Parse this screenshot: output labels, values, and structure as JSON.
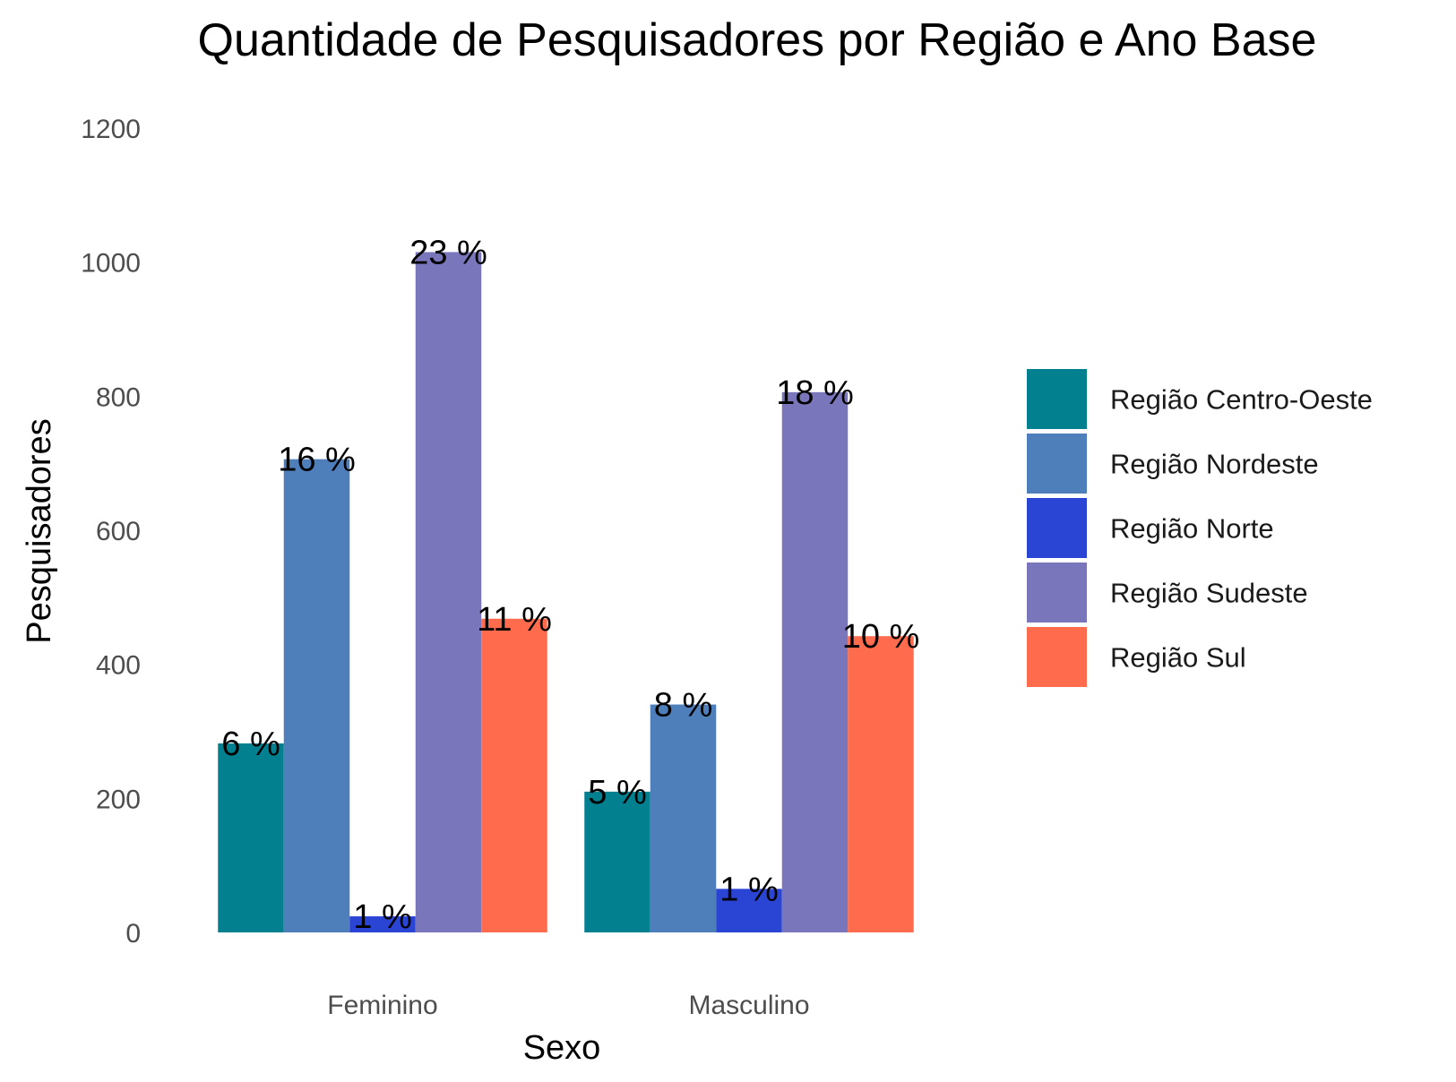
{
  "chart_data": {
    "type": "bar",
    "title": "Quantidade de Pesquisadores por Região e Ano Base",
    "xlabel": "Sexo",
    "ylabel": "Pesquisadores",
    "categories": [
      "Feminino",
      "Masculino"
    ],
    "ylim": [
      0,
      1200
    ],
    "yticks": [
      "0",
      "200",
      "400",
      "600",
      "800",
      "1000",
      "1200"
    ],
    "grid": false,
    "legend_position": "right",
    "series": [
      {
        "name": "Região Centro-Oeste",
        "color": "#028090",
        "values": [
          282,
          210
        ],
        "labels": [
          "6 %",
          "5 %"
        ]
      },
      {
        "name": "Região Nordeste",
        "color": "#4E7FBB",
        "values": [
          706,
          340
        ],
        "labels": [
          "16 %",
          "8 %"
        ]
      },
      {
        "name": "Região Norte",
        "color": "#2A44D4",
        "values": [
          24,
          65
        ],
        "labels": [
          "1 %",
          "1 %"
        ]
      },
      {
        "name": "Região Sudeste",
        "color": "#7A76BB",
        "values": [
          1015,
          806
        ],
        "labels": [
          "23 %",
          "18 %"
        ]
      },
      {
        "name": "Região Sul",
        "color": "#FF6B4D",
        "values": [
          468,
          442
        ],
        "labels": [
          "11 %",
          "10 %"
        ]
      }
    ]
  }
}
